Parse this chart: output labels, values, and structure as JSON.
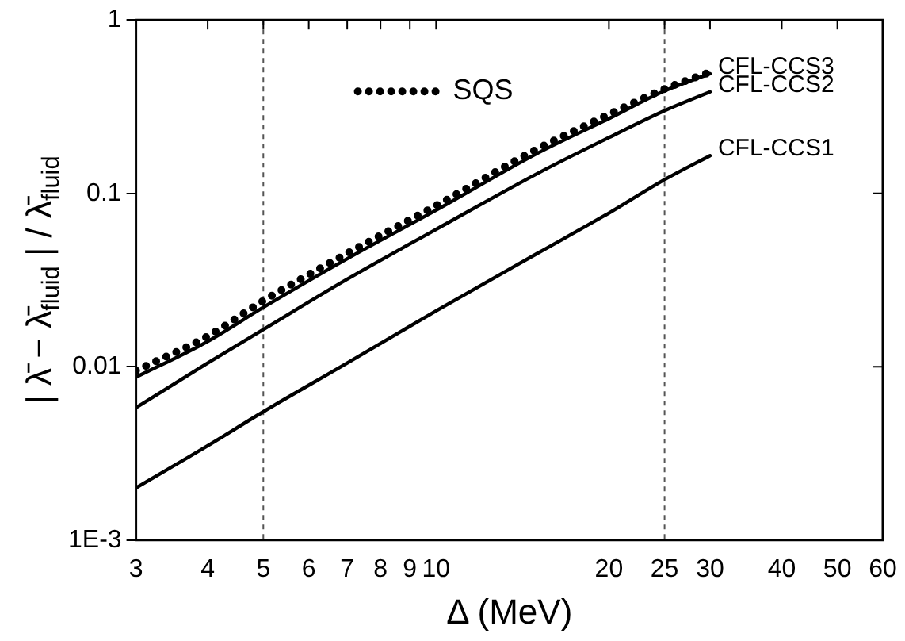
{
  "chart_data": {
    "type": "line",
    "xlabel": "Δ (MeV)",
    "ylabel": "| λ̄ − λ̄$_{fluid}$ | / λ̄$_{fluid}$",
    "log": "xy",
    "grid": false,
    "legend": "top left",
    "marker": "none",
    "xlim": [
      3,
      60
    ],
    "xticks": [
      3,
      4,
      5,
      6,
      7,
      8,
      9,
      10,
      20,
      25,
      30,
      40,
      50,
      60
    ],
    "ylim": [
      0.001,
      1
    ],
    "yticks": [
      {
        "value": 0.001,
        "label": "1E-3"
      },
      0.01,
      0.1,
      1
    ],
    "x": [
      3,
      4,
      5,
      7,
      10,
      15,
      20,
      25,
      30
    ],
    "series": [
      {
        "name": "SQS",
        "color": "#000000",
        "line_style": "dotted",
        "values": [
          0.0095,
          0.015,
          0.024,
          0.045,
          0.085,
          0.18,
          0.285,
          0.4,
          0.5
        ]
      },
      {
        "name": "CFL-CCS3",
        "color": "#000000",
        "line_style": "solid",
        "values": [
          0.0087,
          0.014,
          0.022,
          0.042,
          0.08,
          0.17,
          0.27,
          0.39,
          0.49
        ]
      },
      {
        "name": "CFL-CCS2",
        "color": "#000000",
        "line_style": "solid",
        "values": [
          0.0058,
          0.0105,
          0.0164,
          0.032,
          0.062,
          0.13,
          0.21,
          0.3,
          0.385
        ]
      },
      {
        "name": "CFL-CCS1",
        "color": "#000000",
        "line_style": "solid",
        "values": [
          0.002,
          0.0035,
          0.0055,
          0.0105,
          0.021,
          0.045,
          0.077,
          0.12,
          0.165
        ]
      }
    ],
    "ref_lines": [
      {
        "axis": "x",
        "value": 5,
        "color": "#555555",
        "line_style": "dashed"
      },
      {
        "axis": "x",
        "value": 25,
        "color": "#555555",
        "line_style": "dashed"
      }
    ]
  }
}
